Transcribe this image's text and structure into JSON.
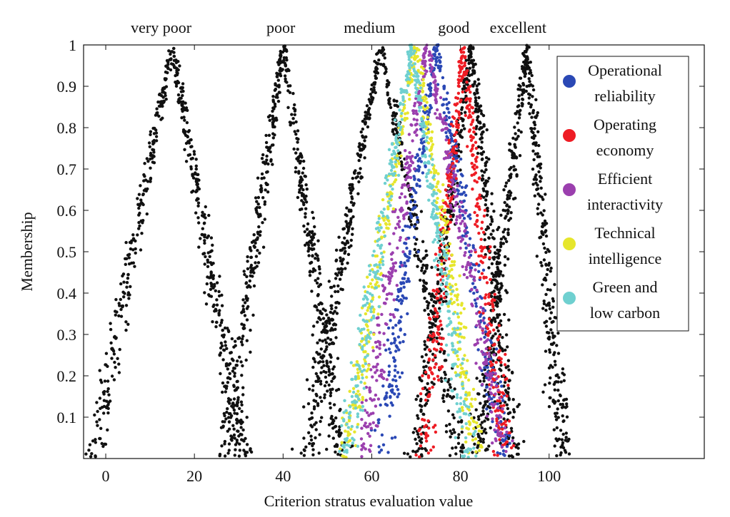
{
  "chart_data": {
    "type": "scatter",
    "title": "",
    "xlabel": "Criterion stratus evaluation value",
    "ylabel": "Membership",
    "xlim": [
      -5,
      135
    ],
    "ylim": [
      0,
      1
    ],
    "xticks": [
      "0",
      "20",
      "40",
      "60",
      "80",
      "100"
    ],
    "xtick_values": [
      0,
      20,
      40,
      60,
      80,
      100
    ],
    "yticks": [
      "0.1",
      "0.2",
      "0.3",
      "0.4",
      "0.5",
      "0.6",
      "0.7",
      "0.8",
      "0.9",
      "1"
    ],
    "ytick_values": [
      0.1,
      0.2,
      0.3,
      0.4,
      0.5,
      0.6,
      0.7,
      0.8,
      0.9,
      1.0
    ],
    "grid": false,
    "legend_position": "top-right",
    "grade_labels": [
      {
        "text": "very poor",
        "x": 12.5
      },
      {
        "text": "poor",
        "x": 39.5
      },
      {
        "text": "medium",
        "x": 59.5
      },
      {
        "text": "good",
        "x": 78.5
      },
      {
        "text": "excellent",
        "x": 93
      }
    ],
    "grades": [
      {
        "label": "very poor",
        "peak": 15,
        "left": -3,
        "right": 31,
        "color": "#111111"
      },
      {
        "label": "poor",
        "peak": 40,
        "left": 27,
        "right": 53,
        "color": "#111111"
      },
      {
        "label": "medium",
        "peak": 62,
        "left": 45,
        "right": 80,
        "color": "#111111"
      },
      {
        "label": "good",
        "peak": 82.5,
        "left": 70,
        "right": 92,
        "color": "#111111"
      },
      {
        "label": "excellent",
        "peak": 95,
        "left": 84,
        "right": 103,
        "color": "#111111"
      }
    ],
    "series": [
      {
        "name": [
          "Operational",
          "reliability"
        ],
        "peak": 74.5,
        "left": 62,
        "right": 90,
        "color": "#2a48b5"
      },
      {
        "name": [
          "Operating",
          "economy"
        ],
        "peak": 80.5,
        "left": 72,
        "right": 90,
        "color": "#ee1c24"
      },
      {
        "name": [
          "Efficient",
          "interactivity"
        ],
        "peak": 72.5,
        "left": 58,
        "right": 90,
        "color": "#9b3fae"
      },
      {
        "name": [
          "Technical",
          "intelligence"
        ],
        "peak": 70,
        "left": 54,
        "right": 84,
        "color": "#e6e62c"
      },
      {
        "name": [
          "Green and",
          "low carbon"
        ],
        "peak": 69,
        "left": 54,
        "right": 82,
        "color": "#6fd0d0"
      }
    ]
  }
}
